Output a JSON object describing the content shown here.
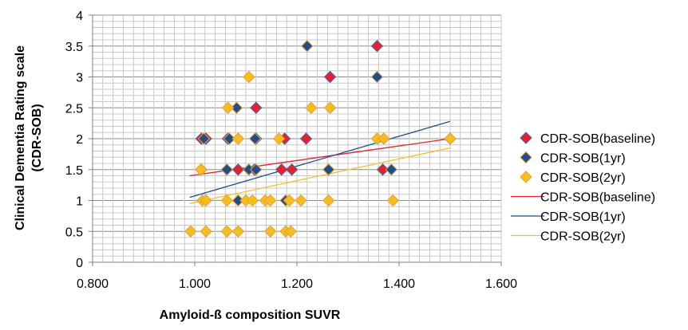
{
  "chart_data": {
    "type": "scatter",
    "xlabel": "Amyloid-ß composition SUVR",
    "ylabel_line1": "Clinical Dementia Rating scale",
    "ylabel_line2": "(CDR-SOB)",
    "xlim": [
      0.8,
      1.6
    ],
    "ylim": [
      0,
      4
    ],
    "x_ticks": [
      "0.800",
      "1.000",
      "1.200",
      "1.400",
      "1.600"
    ],
    "y_ticks": [
      "0",
      "0.5",
      "1",
      "1.5",
      "2",
      "2.5",
      "3",
      "3.5",
      "4"
    ],
    "grid": true,
    "legend_position": "right",
    "series": [
      {
        "name": "CDR-SOB(baseline)",
        "marker": "diamond",
        "fill": "#E8202A",
        "edge": "#4A63A8",
        "points": [
          {
            "x": 1.013,
            "y": 2
          },
          {
            "x": 1.022,
            "y": 2
          },
          {
            "x": 1.065,
            "y": 2
          },
          {
            "x": 1.12,
            "y": 2.5
          },
          {
            "x": 1.12,
            "y": 2
          },
          {
            "x": 1.17,
            "y": 1.5
          },
          {
            "x": 1.176,
            "y": 2
          },
          {
            "x": 1.218,
            "y": 2
          },
          {
            "x": 1.265,
            "y": 3
          },
          {
            "x": 1.357,
            "y": 3.5
          },
          {
            "x": 1.063,
            "y": 1.5
          },
          {
            "x": 1.085,
            "y": 1.5
          },
          {
            "x": 1.106,
            "y": 1.5
          },
          {
            "x": 1.117,
            "y": 1.5
          },
          {
            "x": 1.19,
            "y": 1.5
          },
          {
            "x": 1.262,
            "y": 1.5
          },
          {
            "x": 1.368,
            "y": 1.5
          },
          {
            "x": 1.5,
            "y": 2
          }
        ]
      },
      {
        "name": "CDR-SOB(1yr)",
        "marker": "diamond",
        "fill": "#1F4E8C",
        "edge": "#E8A030",
        "points": [
          {
            "x": 1.082,
            "y": 2.5
          },
          {
            "x": 1.22,
            "y": 3.5
          },
          {
            "x": 1.357,
            "y": 3
          },
          {
            "x": 1.013,
            "y": 1.5
          },
          {
            "x": 1.063,
            "y": 1.5
          },
          {
            "x": 1.106,
            "y": 1.5
          },
          {
            "x": 1.12,
            "y": 1.5
          },
          {
            "x": 1.118,
            "y": 2
          },
          {
            "x": 1.068,
            "y": 2
          },
          {
            "x": 1.018,
            "y": 2
          },
          {
            "x": 1.385,
            "y": 1.5
          },
          {
            "x": 1.085,
            "y": 1
          },
          {
            "x": 1.178,
            "y": 1
          },
          {
            "x": 1.262,
            "y": 1.5
          }
        ]
      },
      {
        "name": "CDR-SOB(2yr)",
        "marker": "diamond",
        "fill": "#F5BE20",
        "edge": "#E8A030",
        "points": [
          {
            "x": 0.992,
            "y": 0.5
          },
          {
            "x": 1.022,
            "y": 0.5
          },
          {
            "x": 1.063,
            "y": 0.5
          },
          {
            "x": 1.085,
            "y": 0.5
          },
          {
            "x": 1.148,
            "y": 0.5
          },
          {
            "x": 1.178,
            "y": 0.5
          },
          {
            "x": 1.188,
            "y": 0.5
          },
          {
            "x": 1.015,
            "y": 1
          },
          {
            "x": 1.022,
            "y": 1
          },
          {
            "x": 1.063,
            "y": 1
          },
          {
            "x": 1.1,
            "y": 1
          },
          {
            "x": 1.113,
            "y": 1
          },
          {
            "x": 1.138,
            "y": 1
          },
          {
            "x": 1.148,
            "y": 1
          },
          {
            "x": 1.185,
            "y": 1
          },
          {
            "x": 1.208,
            "y": 1
          },
          {
            "x": 1.262,
            "y": 1
          },
          {
            "x": 1.388,
            "y": 1
          },
          {
            "x": 1.012,
            "y": 1.5
          },
          {
            "x": 1.065,
            "y": 2.5
          },
          {
            "x": 1.106,
            "y": 3
          },
          {
            "x": 1.085,
            "y": 2
          },
          {
            "x": 1.165,
            "y": 2
          },
          {
            "x": 1.228,
            "y": 2.5
          },
          {
            "x": 1.265,
            "y": 2.5
          },
          {
            "x": 1.357,
            "y": 2
          },
          {
            "x": 1.37,
            "y": 2
          },
          {
            "x": 1.5,
            "y": 2
          }
        ]
      }
    ],
    "trendlines": [
      {
        "name": "CDR-SOB(baseline)",
        "color": "#E8202A",
        "x": [
          0.99,
          1.5
        ],
        "y": [
          1.4,
          2.0
        ]
      },
      {
        "name": "CDR-SOB(1yr)",
        "color": "#1F4E8C",
        "x": [
          0.99,
          1.5
        ],
        "y": [
          1.05,
          2.28
        ]
      },
      {
        "name": "CDR-SOB(2yr)",
        "color": "#F5BE20",
        "x": [
          0.99,
          1.5
        ],
        "y": [
          0.95,
          1.85
        ]
      }
    ]
  }
}
